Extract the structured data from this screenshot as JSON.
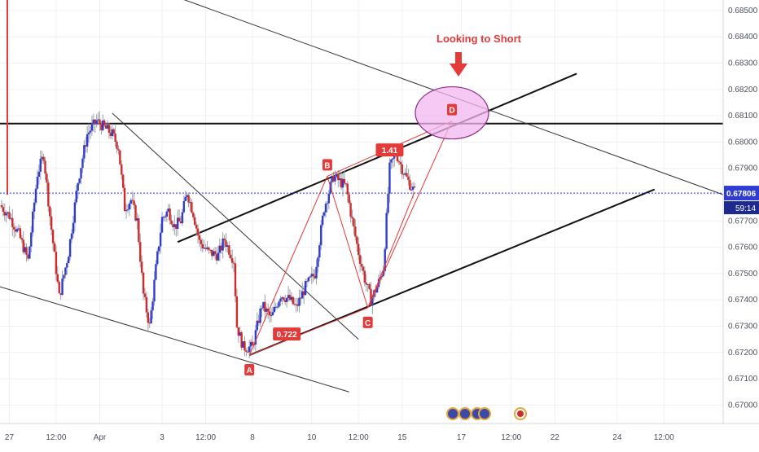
{
  "chart_data": {
    "type": "candlestick",
    "title": "",
    "annotation_text": "Looking to Short",
    "current_price": {
      "value": 0.67806,
      "label": "0.67806",
      "countdown": "59:14"
    },
    "y_axis": {
      "range": [
        0.6693,
        0.6854
      ],
      "ticks": [
        0.67,
        0.671,
        0.672,
        0.673,
        0.674,
        0.675,
        0.676,
        0.677,
        0.678,
        0.679,
        0.68,
        0.681,
        0.682,
        0.683,
        0.684,
        0.685
      ],
      "tick_labels": [
        "0.67000",
        "0.67100",
        "0.67200",
        "0.67300",
        "0.67400",
        "0.67500",
        "0.67600",
        "0.67700",
        "0.67800",
        "0.67900",
        "0.68000",
        "0.68100",
        "0.68200",
        "0.68300",
        "0.68400",
        "0.68500"
      ]
    },
    "x_axis": {
      "range": [
        0,
        232
      ],
      "ticks": [
        3,
        18,
        32,
        52,
        66,
        81,
        100,
        115,
        129,
        148,
        164,
        178,
        198,
        213
      ],
      "tick_labels": [
        "27",
        "12:00",
        "Apr",
        "3",
        "12:00",
        "8",
        "10",
        "12:00",
        "15",
        "17",
        "12:00",
        "22",
        "24",
        "12:00"
      ]
    },
    "price_path": [
      [
        0,
        0.6776
      ],
      [
        3,
        0.6772
      ],
      [
        6,
        0.6765
      ],
      [
        9,
        0.6755
      ],
      [
        12,
        0.6788
      ],
      [
        14,
        0.6795
      ],
      [
        16,
        0.6772
      ],
      [
        19,
        0.6741
      ],
      [
        22,
        0.6758
      ],
      [
        25,
        0.6785
      ],
      [
        28,
        0.6803
      ],
      [
        31,
        0.6808
      ],
      [
        34,
        0.6805
      ],
      [
        36,
        0.6803
      ],
      [
        38,
        0.6798
      ],
      [
        40,
        0.6775
      ],
      [
        42,
        0.6778
      ],
      [
        44,
        0.677
      ],
      [
        46,
        0.6742
      ],
      [
        48,
        0.673
      ],
      [
        50,
        0.6752
      ],
      [
        52,
        0.6771
      ],
      [
        54,
        0.6774
      ],
      [
        56,
        0.6768
      ],
      [
        58,
        0.677
      ],
      [
        60,
        0.6781
      ],
      [
        62,
        0.6773
      ],
      [
        64,
        0.6762
      ],
      [
        67,
        0.6758
      ],
      [
        70,
        0.6757
      ],
      [
        72,
        0.6763
      ],
      [
        75,
        0.6755
      ],
      [
        76,
        0.673
      ],
      [
        78,
        0.6722
      ],
      [
        81,
        0.6722
      ],
      [
        84,
        0.6738
      ],
      [
        87,
        0.6733
      ],
      [
        90,
        0.6742
      ],
      [
        93,
        0.674
      ],
      [
        95,
        0.6737
      ],
      [
        98,
        0.6745
      ],
      [
        101,
        0.675
      ],
      [
        104,
        0.6775
      ],
      [
        107,
        0.6787
      ],
      [
        109,
        0.6785
      ],
      [
        111,
        0.6783
      ],
      [
        113,
        0.677
      ],
      [
        115,
        0.6758
      ],
      [
        117,
        0.6748
      ],
      [
        119,
        0.674
      ],
      [
        121,
        0.6745
      ],
      [
        123,
        0.6752
      ],
      [
        125,
        0.679
      ],
      [
        127,
        0.6796
      ],
      [
        129,
        0.679
      ],
      [
        131,
        0.6785
      ],
      [
        133,
        0.6781
      ]
    ],
    "lines": [
      {
        "name": "upper-channel",
        "color": "#111111",
        "points": [
          [
            57,
            0.6762
          ],
          [
            185,
            0.6826
          ]
        ]
      },
      {
        "name": "lower-channel",
        "color": "#111111",
        "points": [
          [
            80,
            0.6719
          ],
          [
            210,
            0.6782
          ]
        ]
      },
      {
        "name": "resistance",
        "color": "#111111",
        "points": [
          [
            0,
            0.6807
          ],
          [
            232,
            0.6807
          ]
        ]
      },
      {
        "name": "descending-top",
        "color": "#333333",
        "points": [
          [
            57,
            0.6855
          ],
          [
            232,
            0.678
          ]
        ]
      },
      {
        "name": "descending-bottom",
        "color": "#333333",
        "points": [
          [
            0,
            0.6745
          ],
          [
            112,
            0.6705
          ]
        ]
      },
      {
        "name": "diagonal",
        "color": "#333333",
        "points": [
          [
            36,
            0.6811
          ],
          [
            115,
            0.6725
          ]
        ]
      }
    ],
    "pattern": {
      "points": [
        {
          "label": "A",
          "x": 80,
          "y": 0.6719
        },
        {
          "label": "B",
          "x": 105,
          "y": 0.6787
        },
        {
          "label": "C",
          "x": 118,
          "y": 0.6737
        },
        {
          "label": "D",
          "x": 145,
          "y": 0.6808
        }
      ],
      "ratios": [
        {
          "label": "0.722",
          "x": 92,
          "y": 0.6727
        },
        {
          "label": "1.41",
          "x": 125,
          "y": 0.6797
        }
      ],
      "projection_end": [
        133,
        0.6781
      ],
      "color": "#e33a3a"
    },
    "colors": {
      "up": "#2f3bd1",
      "down": "#d12a2a",
      "accent": "#e33a3a",
      "price_line": "#2f3bd1",
      "ellipse_fill": "#f3b6f0"
    },
    "grid": true
  }
}
